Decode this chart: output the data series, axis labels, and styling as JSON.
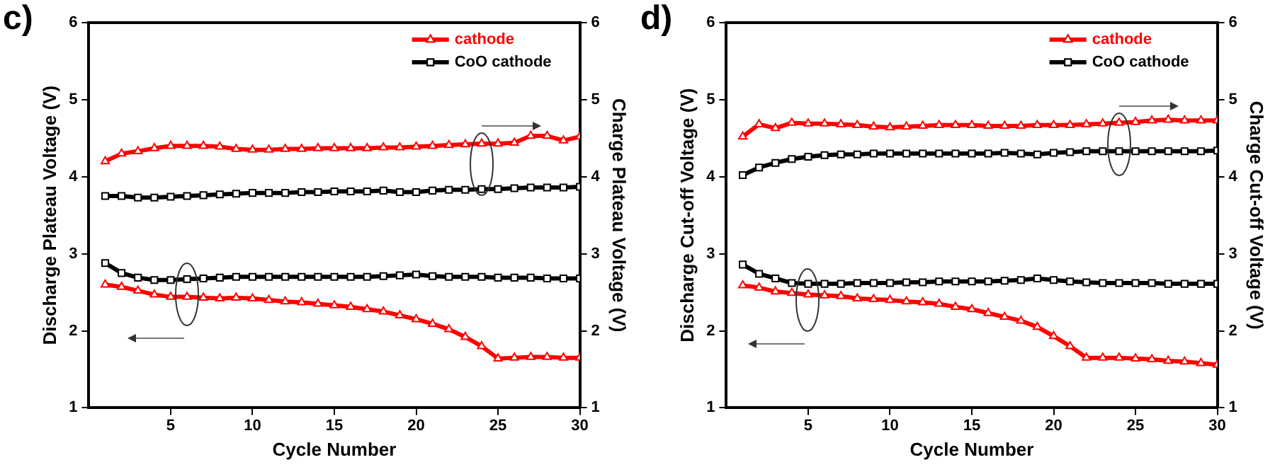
{
  "chart_data": [
    {
      "type": "line",
      "title": "c)",
      "xlabel": "Cycle Number",
      "ylabel": "Discharge Plateau Voltage (V)",
      "y2label": "Charge Plateau Voltage (V)",
      "x": [
        1,
        2,
        3,
        4,
        5,
        6,
        7,
        8,
        9,
        10,
        11,
        12,
        13,
        14,
        15,
        16,
        17,
        18,
        19,
        20,
        21,
        22,
        23,
        24,
        25,
        26,
        27,
        28,
        29,
        30
      ],
      "xlim": [
        0,
        30
      ],
      "xticks": [
        5,
        10,
        15,
        20,
        25,
        30
      ],
      "ylim": [
        1,
        6
      ],
      "yticks": [
        1,
        2,
        3,
        4,
        5,
        6
      ],
      "y2lim": [
        1,
        6
      ],
      "y2ticks": [
        1,
        2,
        3,
        4,
        5,
        6
      ],
      "legend": "top right",
      "grid": false,
      "line_style": "solid",
      "series": [
        {
          "name": "cathode",
          "color": "#ff0000",
          "marker": "triangle",
          "values": [
            2.6,
            2.57,
            2.52,
            2.47,
            2.44,
            2.44,
            2.43,
            2.42,
            2.43,
            2.42,
            2.4,
            2.38,
            2.37,
            2.35,
            2.33,
            2.31,
            2.28,
            2.25,
            2.2,
            2.15,
            2.09,
            2.02,
            1.92,
            1.8,
            1.64,
            1.65,
            1.66,
            1.66,
            1.65,
            1.65
          ]
        },
        {
          "name": "CoO cathode",
          "color": "#000000",
          "marker": "square",
          "values": [
            2.88,
            2.75,
            2.69,
            2.66,
            2.66,
            2.67,
            2.68,
            2.69,
            2.7,
            2.7,
            2.7,
            2.7,
            2.7,
            2.7,
            2.7,
            2.7,
            2.7,
            2.71,
            2.72,
            2.73,
            2.71,
            2.7,
            2.7,
            2.7,
            2.69,
            2.69,
            2.69,
            2.68,
            2.68,
            2.68
          ]
        },
        {
          "color": "#ff0000",
          "marker": "triangle",
          "axis": "y2",
          "values": [
            4.2,
            4.3,
            4.33,
            4.37,
            4.4,
            4.4,
            4.4,
            4.39,
            4.36,
            4.35,
            4.35,
            4.36,
            4.36,
            4.37,
            4.37,
            4.37,
            4.37,
            4.38,
            4.38,
            4.39,
            4.4,
            4.41,
            4.42,
            4.43,
            4.43,
            4.44,
            4.53,
            4.53,
            4.47,
            4.52
          ]
        },
        {
          "color": "#000000",
          "marker": "square",
          "axis": "y2",
          "values": [
            3.75,
            3.75,
            3.73,
            3.73,
            3.74,
            3.75,
            3.76,
            3.77,
            3.78,
            3.79,
            3.79,
            3.79,
            3.8,
            3.8,
            3.81,
            3.81,
            3.81,
            3.82,
            3.8,
            3.8,
            3.82,
            3.83,
            3.83,
            3.84,
            3.84,
            3.85,
            3.86,
            3.86,
            3.86,
            3.87
          ]
        }
      ]
    },
    {
      "type": "line",
      "title": "d)",
      "xlabel": "Cycle Number",
      "ylabel": "Discharge Cut-off Voltage (V)",
      "y2label": "Charge Cut-off Voltage (V)",
      "x": [
        1,
        2,
        3,
        4,
        5,
        6,
        7,
        8,
        9,
        10,
        11,
        12,
        13,
        14,
        15,
        16,
        17,
        18,
        19,
        20,
        21,
        22,
        23,
        24,
        25,
        26,
        27,
        28,
        29,
        30
      ],
      "xlim": [
        0,
        30
      ],
      "xticks": [
        5,
        10,
        15,
        20,
        25,
        30
      ],
      "ylim": [
        1,
        6
      ],
      "yticks": [
        1,
        2,
        3,
        4,
        5,
        6
      ],
      "y2lim": [
        1,
        6
      ],
      "y2ticks": [
        1,
        2,
        3,
        4,
        5,
        6
      ],
      "legend": "top right",
      "grid": false,
      "line_style": "solid",
      "series": [
        {
          "name": "cathode",
          "color": "#ff0000",
          "marker": "triangle",
          "values": [
            2.59,
            2.56,
            2.51,
            2.49,
            2.47,
            2.46,
            2.45,
            2.42,
            2.41,
            2.4,
            2.38,
            2.37,
            2.35,
            2.31,
            2.28,
            2.23,
            2.18,
            2.13,
            2.05,
            1.93,
            1.8,
            1.65,
            1.65,
            1.65,
            1.64,
            1.63,
            1.61,
            1.6,
            1.58,
            1.56
          ]
        },
        {
          "name": "CoO cathode",
          "color": "#000000",
          "marker": "square",
          "values": [
            2.86,
            2.74,
            2.68,
            2.62,
            2.61,
            2.61,
            2.61,
            2.62,
            2.62,
            2.62,
            2.63,
            2.63,
            2.64,
            2.64,
            2.64,
            2.64,
            2.65,
            2.66,
            2.68,
            2.66,
            2.64,
            2.63,
            2.62,
            2.62,
            2.62,
            2.62,
            2.61,
            2.61,
            2.61,
            2.61
          ]
        },
        {
          "color": "#ff0000",
          "marker": "triangle",
          "axis": "y2",
          "values": [
            4.52,
            4.68,
            4.63,
            4.7,
            4.69,
            4.69,
            4.68,
            4.67,
            4.65,
            4.64,
            4.65,
            4.66,
            4.67,
            4.67,
            4.67,
            4.66,
            4.66,
            4.66,
            4.67,
            4.67,
            4.67,
            4.68,
            4.69,
            4.7,
            4.71,
            4.73,
            4.74,
            4.73,
            4.73,
            4.73
          ]
        },
        {
          "color": "#000000",
          "marker": "square",
          "axis": "y2",
          "values": [
            4.02,
            4.12,
            4.18,
            4.23,
            4.26,
            4.28,
            4.29,
            4.29,
            4.3,
            4.3,
            4.3,
            4.3,
            4.3,
            4.3,
            4.3,
            4.3,
            4.31,
            4.3,
            4.29,
            4.31,
            4.32,
            4.33,
            4.33,
            4.33,
            4.33,
            4.33,
            4.33,
            4.33,
            4.33,
            4.34
          ]
        }
      ]
    }
  ]
}
